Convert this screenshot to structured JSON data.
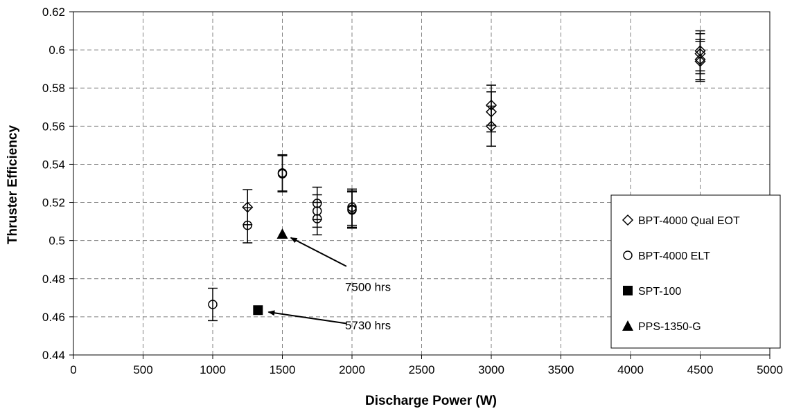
{
  "chart_data": {
    "type": "scatter",
    "xlabel": "Discharge Power (W)",
    "ylabel": "Thruster Efficiency",
    "xlim": [
      0,
      5000
    ],
    "ylim": [
      0.44,
      0.62
    ],
    "x_ticks": [
      0,
      500,
      1000,
      1500,
      2000,
      2500,
      3000,
      3500,
      4000,
      4500,
      5000
    ],
    "y_ticks": [
      0.44,
      0.46,
      0.48,
      0.5,
      0.52,
      0.54,
      0.56,
      0.58,
      0.6,
      0.62
    ],
    "y_tick_labels": [
      "0.44",
      "0.46",
      "0.48",
      "0.5",
      "0.52",
      "0.54",
      "0.56",
      "0.58",
      "0.6",
      "0.62"
    ],
    "grid": true,
    "legend_position": "right",
    "series": [
      {
        "name": "BPT-4000 Qual EOT",
        "marker": "diamond-open",
        "points": [
          {
            "x": 1250,
            "y": 0.5175,
            "err": 0.0092
          },
          {
            "x": 3000,
            "y": 0.571,
            "err": 0.0105
          },
          {
            "x": 3000,
            "y": 0.5675,
            "err": 0.0105
          },
          {
            "x": 3000,
            "y": 0.56,
            "err": 0.0105
          },
          {
            "x": 4500,
            "y": 0.5995,
            "err": 0.0105
          },
          {
            "x": 4500,
            "y": 0.598,
            "err": 0.0105
          },
          {
            "x": 4500,
            "y": 0.595,
            "err": 0.0105
          },
          {
            "x": 4500,
            "y": 0.594,
            "err": 0.0105
          }
        ]
      },
      {
        "name": "BPT-4000 ELT",
        "marker": "circle-open",
        "points": [
          {
            "x": 1000,
            "y": 0.4665,
            "err": 0.0085
          },
          {
            "x": 1250,
            "y": 0.508,
            "err": 0.0092
          },
          {
            "x": 1500,
            "y": 0.5355,
            "err": 0.0095
          },
          {
            "x": 1500,
            "y": 0.535,
            "err": 0.0095
          },
          {
            "x": 1750,
            "y": 0.5195,
            "err": 0.0085
          },
          {
            "x": 1750,
            "y": 0.5155,
            "err": 0.0085
          },
          {
            "x": 1750,
            "y": 0.5115,
            "err": 0.0085
          },
          {
            "x": 2000,
            "y": 0.5175,
            "err": 0.0095
          },
          {
            "x": 2000,
            "y": 0.5165,
            "err": 0.0095
          },
          {
            "x": 2000,
            "y": 0.516,
            "err": 0.0095
          }
        ]
      },
      {
        "name": "SPT-100",
        "marker": "square-filled",
        "points": [
          {
            "x": 1325,
            "y": 0.4635
          }
        ]
      },
      {
        "name": "PPS-1350-G",
        "marker": "triangle-filled",
        "points": [
          {
            "x": 1500,
            "y": 0.5035
          }
        ]
      }
    ],
    "annotations": [
      {
        "text": "7500 hrs",
        "text_x": 1950,
        "text_y": 0.4735,
        "arrow_from_x": 1960,
        "arrow_from_y": 0.4865,
        "arrow_to_x": 1560,
        "arrow_to_y": 0.5015
      },
      {
        "text": "5730 hrs",
        "text_x": 1950,
        "text_y": 0.4535,
        "arrow_from_x": 1960,
        "arrow_from_y": 0.4565,
        "arrow_to_x": 1400,
        "arrow_to_y": 0.4625
      }
    ]
  }
}
